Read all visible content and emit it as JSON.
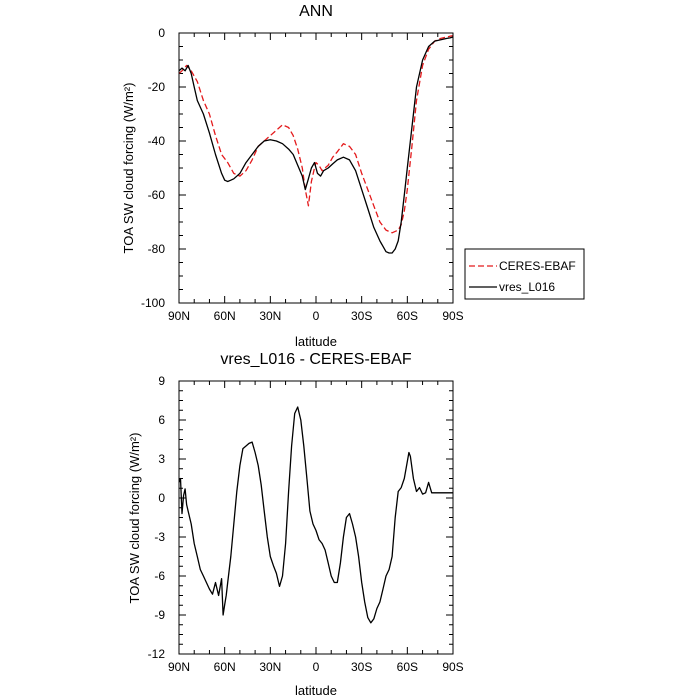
{
  "chart_data": [
    {
      "type": "line",
      "title": "ANN",
      "xlabel": "latitude",
      "ylabel": "TOA SW cloud forcing (W/m²)",
      "xlim": [
        90,
        -90
      ],
      "ylim": [
        -100,
        0
      ],
      "xticks": [
        90,
        60,
        30,
        0,
        -30,
        -60,
        -90
      ],
      "xtick_labels": [
        "90N",
        "60N",
        "30N",
        "0",
        "30S",
        "60S",
        "90S"
      ],
      "yticks": [
        0,
        -20,
        -40,
        -60,
        -80,
        -100
      ],
      "ytick_labels": [
        "0",
        "-20",
        "-40",
        "-60",
        "-80",
        "-100"
      ],
      "grid": false,
      "legend_position": "right",
      "series": [
        {
          "name": "CERES-EBAF",
          "color": "#e41a1c",
          "dash": "dashed",
          "x": [
            90,
            88,
            85,
            82,
            78,
            74,
            70,
            66,
            62,
            58,
            54,
            50,
            46,
            42,
            38,
            34,
            30,
            26,
            22,
            18,
            15,
            12,
            9,
            7,
            5,
            3,
            1,
            0,
            -2,
            -4,
            -6,
            -8,
            -11,
            -14,
            -18,
            -22,
            -26,
            -30,
            -34,
            -38,
            -42,
            -46,
            -50,
            -54,
            -56,
            -58,
            -60,
            -63,
            -66,
            -70,
            -74,
            -78,
            -82,
            -86,
            -88,
            -90
          ],
          "y": [
            -15,
            -14,
            -12,
            -14,
            -18,
            -25,
            -30,
            -38,
            -45,
            -48,
            -52,
            -53,
            -51,
            -47,
            -42,
            -40,
            -38,
            -36,
            -34,
            -35,
            -38,
            -43,
            -50,
            -58,
            -64,
            -55,
            -50,
            -48,
            -49,
            -51,
            -50,
            -49,
            -46,
            -44,
            -41,
            -42,
            -45,
            -52,
            -58,
            -64,
            -70,
            -73,
            -74,
            -73,
            -71,
            -66,
            -58,
            -42,
            -25,
            -12,
            -6,
            -3,
            -2,
            -1.5,
            -1.2,
            -1
          ]
        },
        {
          "name": "vres_L016",
          "color": "#000000",
          "dash": "solid",
          "x": [
            90,
            88,
            86,
            84,
            82,
            80,
            78,
            74,
            70,
            66,
            62,
            60,
            58,
            56,
            54,
            50,
            46,
            42,
            38,
            34,
            30,
            26,
            22,
            18,
            15,
            12,
            9,
            7,
            5,
            3,
            1,
            -1,
            -3,
            -5,
            -8,
            -11,
            -14,
            -18,
            -22,
            -26,
            -30,
            -34,
            -38,
            -42,
            -46,
            -48,
            -50,
            -52,
            -54,
            -56,
            -58,
            -60,
            -63,
            -66,
            -70,
            -74,
            -78,
            -82,
            -86,
            -88,
            -90
          ],
          "y": [
            -14,
            -13,
            -14,
            -12,
            -15,
            -20,
            -25,
            -30,
            -37,
            -45,
            -52,
            -54.5,
            -55,
            -54.5,
            -54,
            -52,
            -48,
            -45,
            -42,
            -40,
            -39.5,
            -40,
            -41,
            -43,
            -45,
            -49,
            -53,
            -58,
            -54,
            -50,
            -48,
            -52,
            -53,
            -51,
            -50,
            -48.5,
            -47,
            -46,
            -47,
            -51,
            -58,
            -65,
            -72,
            -77,
            -81,
            -81.5,
            -81.5,
            -80,
            -77,
            -70,
            -60,
            -50,
            -35,
            -20,
            -10,
            -5,
            -3,
            -2.5,
            -2,
            -1.8,
            -1.5
          ]
        }
      ]
    },
    {
      "type": "line",
      "title": "vres_L016 - CERES-EBAF",
      "xlabel": "latitude",
      "ylabel": "TOA SW cloud forcing (W/m²)",
      "xlim": [
        90,
        -90
      ],
      "ylim": [
        -12,
        9
      ],
      "xticks": [
        90,
        60,
        30,
        0,
        -30,
        -60,
        -90
      ],
      "xtick_labels": [
        "90N",
        "60N",
        "30N",
        "0",
        "30S",
        "60S",
        "90S"
      ],
      "yticks": [
        9,
        6,
        3,
        0,
        -3,
        -6,
        -9,
        -12
      ],
      "ytick_labels": [
        "9",
        "6",
        "3",
        "0",
        "-3",
        "-6",
        "-9",
        "-12"
      ],
      "grid": false,
      "series": [
        {
          "color": "#000000",
          "dash": "solid",
          "x": [
            90,
            89,
            88,
            87,
            86,
            85,
            84,
            82,
            80,
            78,
            76,
            74,
            72,
            70,
            68,
            66,
            64,
            62,
            61,
            60,
            59,
            58,
            56,
            54,
            52,
            50,
            48,
            46,
            44,
            42,
            40,
            38,
            36,
            34,
            32,
            30,
            28,
            26,
            24,
            22,
            20,
            18,
            16,
            14,
            12,
            10,
            8,
            6,
            4,
            2,
            0,
            -2,
            -4,
            -6,
            -8,
            -10,
            -12,
            -14,
            -16,
            -18,
            -20,
            -22,
            -24,
            -26,
            -28,
            -30,
            -32,
            -34,
            -36,
            -38,
            -40,
            -42,
            -44,
            -46,
            -48,
            -50,
            -52,
            -54,
            -56,
            -58,
            -60,
            -61,
            -62,
            -64,
            -66,
            -68,
            -70,
            -72,
            -74,
            -76,
            -78,
            -80,
            -82,
            -84,
            -86,
            -88,
            -90
          ],
          "y": [
            1.2,
            1.5,
            -1.2,
            0.2,
            0.7,
            -0.5,
            -1,
            -2,
            -3.5,
            -4.5,
            -5.5,
            -6,
            -6.5,
            -7,
            -7.4,
            -6.5,
            -7.5,
            -6.2,
            -9,
            -8.2,
            -7.5,
            -6.5,
            -4.5,
            -2,
            0.5,
            2.5,
            3.8,
            4,
            4.2,
            4.3,
            3.5,
            2.5,
            1,
            -1,
            -3,
            -4.5,
            -5.2,
            -5.8,
            -6.8,
            -6,
            -3.5,
            0.5,
            4,
            6.5,
            7,
            6,
            4,
            1.5,
            -1,
            -2,
            -2.5,
            -3.2,
            -3.5,
            -4,
            -5,
            -6,
            -6.5,
            -6.5,
            -5,
            -3,
            -1.5,
            -1.2,
            -2,
            -3,
            -4.5,
            -6.5,
            -8,
            -9.2,
            -9.6,
            -9.3,
            -8.5,
            -8,
            -7,
            -6,
            -5.5,
            -4.5,
            -1.5,
            0.5,
            0.8,
            1.5,
            2.8,
            3.5,
            3.2,
            1.5,
            0.5,
            0.8,
            0.3,
            0.4,
            1.2,
            0.4,
            0.4,
            0.4,
            0.4,
            0.4,
            0.4,
            0.4,
            0.4
          ]
        }
      ]
    }
  ]
}
